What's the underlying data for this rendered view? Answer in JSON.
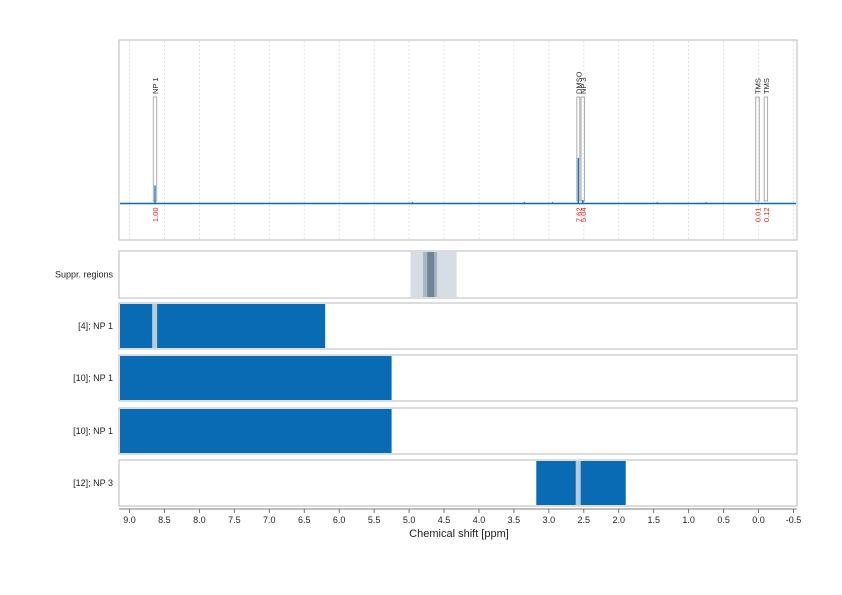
{
  "colors": {
    "accent": "#0a6bb5",
    "integral_text": "#e0201b",
    "frame": "#b8b8b8",
    "grid": "#c9c9c9",
    "suppr_outer": "#d6dde4",
    "suppr_inner": "#a8b6c2",
    "suppr_core": "#6e8594",
    "gap": "#b8cbd8"
  },
  "chart_data": {
    "type": "nmr-spectrum",
    "xlabel": "Chemical shift [ppm]",
    "xlim": [
      9.15,
      -0.55
    ],
    "x_ticks": [
      {
        "value": 9.0,
        "label": "9.0"
      },
      {
        "value": 8.5,
        "label": "8.5"
      },
      {
        "value": 8.0,
        "label": "8.0"
      },
      {
        "value": 7.5,
        "label": "7.5"
      },
      {
        "value": 7.0,
        "label": "7.0"
      },
      {
        "value": 6.5,
        "label": "6.5"
      },
      {
        "value": 6.0,
        "label": "6.0"
      },
      {
        "value": 5.5,
        "label": "5.5"
      },
      {
        "value": 5.0,
        "label": "5.0"
      },
      {
        "value": 4.5,
        "label": "4.5"
      },
      {
        "value": 4.0,
        "label": "4.0"
      },
      {
        "value": 3.5,
        "label": "3.5"
      },
      {
        "value": 3.0,
        "label": "3.0"
      },
      {
        "value": 2.5,
        "label": "2.5"
      },
      {
        "value": 2.0,
        "label": "2.0"
      },
      {
        "value": 1.5,
        "label": "1.5"
      },
      {
        "value": 1.0,
        "label": "1.0"
      },
      {
        "value": 0.5,
        "label": "0.5"
      },
      {
        "value": 0.0,
        "label": "0.0"
      },
      {
        "value": -0.5,
        "label": "-0.5"
      }
    ],
    "peaks": [
      {
        "label": "NP 1",
        "integral": "1.00",
        "from": 8.66,
        "to": 8.61,
        "height": 0.15
      },
      {
        "label": "DMSO",
        "integral": "7.62",
        "from": 2.6,
        "to": 2.56,
        "height": 0.38
      },
      {
        "label": "NP 3",
        "integral": "5.04",
        "from": 2.54,
        "to": 2.49,
        "height": 0.03
      },
      {
        "label": "TMS",
        "integral": "0.01",
        "from": 0.04,
        "to": -0.01,
        "height": 0.0
      },
      {
        "label": "TMS",
        "integral": "0.12",
        "from": -0.08,
        "to": -0.13,
        "height": 0.0
      }
    ],
    "suppression": {
      "label": "Suppr. regions",
      "outer": [
        4.98,
        4.32
      ],
      "inner": [
        4.8,
        4.6
      ],
      "core": [
        4.74,
        4.64
      ]
    },
    "regions": [
      {
        "label": "[4]; NP 1",
        "from": 9.15,
        "to": 6.2,
        "gap": 8.64
      },
      {
        "label": "[10]; NP 1",
        "from": 9.15,
        "to": 5.25,
        "gap": null
      },
      {
        "label": "[10]; NP 1",
        "from": 9.15,
        "to": 5.25,
        "gap": null
      },
      {
        "label": "[12]; NP 3",
        "from": 3.18,
        "to": 1.9,
        "gap": 2.58
      }
    ]
  }
}
